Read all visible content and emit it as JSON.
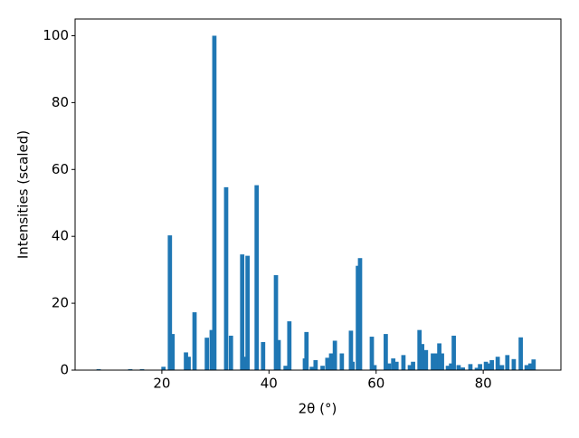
{
  "chart_data": {
    "type": "bar",
    "x_label": "2θ (°)",
    "y_label": "Intensities (scaled)",
    "color": "#1f77b4",
    "bar_width": 0.8,
    "x": [
      8.2,
      14.1,
      16.3,
      20.3,
      21.5,
      22.0,
      24.5,
      25.0,
      26.1,
      28.4,
      29.3,
      29.8,
      32.0,
      32.9,
      35.0,
      35.5,
      36.0,
      37.7,
      38.9,
      41.3,
      41.8,
      43.1,
      43.8,
      46.7,
      47.0,
      48.0,
      48.7,
      50.0,
      50.9,
      51.6,
      52.3,
      53.6,
      55.3,
      55.6,
      56.6,
      57.0,
      59.2,
      59.7,
      61.8,
      62.4,
      63.2,
      63.8,
      65.1,
      66.3,
      66.9,
      68.1,
      68.6,
      69.3,
      70.6,
      71.3,
      71.8,
      72.3,
      73.4,
      74.0,
      74.5,
      75.4,
      76.2,
      77.6,
      78.8,
      79.4,
      80.5,
      81.1,
      81.6,
      82.7,
      83.5,
      84.5,
      85.7,
      87.0,
      88.1,
      88.8,
      89.4
    ],
    "values": [
      0.3,
      0.3,
      0.3,
      1,
      40.3,
      10.8,
      5.3,
      4,
      17.3,
      9.7,
      12,
      100,
      54.7,
      10.3,
      34.6,
      4,
      34.2,
      55.3,
      8.4,
      28.4,
      9,
      1.3,
      14.6,
      3.5,
      11.4,
      1,
      3,
      1.3,
      3.7,
      5,
      8.8,
      5,
      11.8,
      2.5,
      31.2,
      33.5,
      10,
      1.5,
      10.8,
      2,
      3.5,
      2.5,
      4.5,
      1.5,
      2.5,
      12,
      7.8,
      6,
      5,
      5,
      8,
      5,
      1.3,
      2,
      10.3,
      1.5,
      0.8,
      1.8,
      0.7,
      1.8,
      2.5,
      2,
      3,
      4,
      1.5,
      4.5,
      3.3,
      9.8,
      1.5,
      2,
      3.2
    ],
    "xlim": [
      3.8,
      94.5
    ],
    "ylim": [
      0,
      105
    ],
    "xticks": [
      20,
      40,
      60,
      80
    ],
    "yticks": [
      0,
      20,
      40,
      60,
      80,
      100
    ]
  }
}
